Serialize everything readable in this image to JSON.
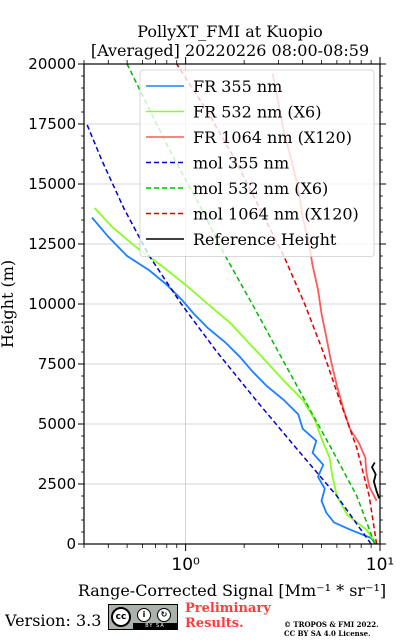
{
  "figure": {
    "title_line1": "PollyXT_FMI at Kuopio",
    "title_line2": "[Averaged] 20220226 08:00-08:59",
    "version": "Version: 3.3",
    "license_badge": {
      "logo": "cc",
      "icons": [
        "by-icon",
        "sa-icon"
      ],
      "strip_text": "BY  SA"
    },
    "preliminary": [
      "Preliminary",
      "Results."
    ],
    "copyright": [
      "© TROPOS & FMI 2022.",
      "CC BY SA 4.0 License."
    ]
  },
  "chart_data": {
    "type": "line",
    "xlabel": "Range-Corrected Signal [Mm⁻¹ * sr⁻¹]",
    "ylabel": "Height (m)",
    "xscale": "log",
    "xlim": [
      0.3,
      10
    ],
    "ylim": [
      0,
      20000
    ],
    "x_ticks": [
      {
        "value": 1,
        "label": "10⁰"
      },
      {
        "value": 10,
        "label": "10¹"
      }
    ],
    "y_ticks": [
      0,
      2500,
      5000,
      7500,
      10000,
      12500,
      15000,
      17500,
      20000
    ],
    "y_tick_labels": [
      "0",
      "2500",
      "5000",
      "7500",
      "10000",
      "12500",
      "15000",
      "17500",
      "20000"
    ],
    "grid": true,
    "legend_position": "top-right",
    "series": [
      {
        "name": "FR 355 nm",
        "color": "#1a80ff",
        "style": "solid",
        "points": [
          [
            9.5,
            0
          ],
          [
            9.0,
            250
          ],
          [
            7.0,
            600
          ],
          [
            5.8,
            900
          ],
          [
            5.3,
            1300
          ],
          [
            5.0,
            1800
          ],
          [
            5.2,
            2300
          ],
          [
            4.8,
            2800
          ],
          [
            5.1,
            3300
          ],
          [
            4.5,
            3800
          ],
          [
            4.7,
            4300
          ],
          [
            4.0,
            4800
          ],
          [
            3.8,
            5400
          ],
          [
            3.2,
            6000
          ],
          [
            2.6,
            6600
          ],
          [
            2.2,
            7200
          ],
          [
            1.9,
            7800
          ],
          [
            1.6,
            8400
          ],
          [
            1.3,
            9000
          ],
          [
            1.1,
            9600
          ],
          [
            0.95,
            10200
          ],
          [
            0.8,
            10800
          ],
          [
            0.65,
            11400
          ],
          [
            0.5,
            12000
          ],
          [
            0.4,
            12800
          ],
          [
            0.33,
            13600
          ]
        ]
      },
      {
        "name": "FR 532 nm (X6)",
        "color": "#88ff22",
        "style": "solid",
        "points": [
          [
            9.6,
            0
          ],
          [
            8.5,
            600
          ],
          [
            6.8,
            1200
          ],
          [
            6.0,
            2000
          ],
          [
            5.7,
            2800
          ],
          [
            5.5,
            3600
          ],
          [
            5.0,
            4400
          ],
          [
            4.6,
            5200
          ],
          [
            4.0,
            6000
          ],
          [
            3.2,
            6800
          ],
          [
            2.6,
            7600
          ],
          [
            2.1,
            8400
          ],
          [
            1.7,
            9200
          ],
          [
            1.3,
            10000
          ],
          [
            1.0,
            10800
          ],
          [
            0.75,
            11600
          ],
          [
            0.55,
            12400
          ],
          [
            0.42,
            13200
          ],
          [
            0.34,
            14000
          ]
        ]
      },
      {
        "name": "FR 1064 nm (X120)",
        "color": "#ff5a5a",
        "style": "solid",
        "points": [
          [
            9.6,
            1800
          ],
          [
            8.8,
            2400
          ],
          [
            8.5,
            3000
          ],
          [
            8.4,
            3600
          ],
          [
            7.8,
            4200
          ],
          [
            7.0,
            4800
          ],
          [
            6.5,
            5600
          ],
          [
            6.0,
            6600
          ],
          [
            5.6,
            7600
          ],
          [
            5.3,
            8600
          ],
          [
            5.0,
            9600
          ],
          [
            4.8,
            10600
          ],
          [
            4.5,
            11600
          ],
          [
            4.3,
            12600
          ],
          [
            4.0,
            13600
          ],
          [
            3.8,
            14800
          ],
          [
            3.5,
            16000
          ],
          [
            3.2,
            17200
          ],
          [
            3.0,
            18400
          ],
          [
            2.8,
            19600
          ]
        ]
      },
      {
        "name": "mol 355 nm",
        "color": "#0000cc",
        "style": "dashed",
        "points": [
          [
            9.0,
            0
          ],
          [
            6.0,
            2000
          ],
          [
            3.7,
            4000
          ],
          [
            2.3,
            6000
          ],
          [
            1.45,
            8000
          ],
          [
            0.95,
            10000
          ],
          [
            0.65,
            12000
          ],
          [
            0.48,
            14000
          ],
          [
            0.37,
            16000
          ],
          [
            0.31,
            17500
          ]
        ]
      },
      {
        "name": "mol 532 nm (X6)",
        "color": "#00bb00",
        "style": "dashed",
        "points": [
          [
            9.4,
            0
          ],
          [
            7.6,
            2000
          ],
          [
            5.6,
            4000
          ],
          [
            4.1,
            6000
          ],
          [
            3.0,
            8000
          ],
          [
            2.2,
            10000
          ],
          [
            1.6,
            12000
          ],
          [
            1.2,
            14000
          ],
          [
            0.88,
            16000
          ],
          [
            0.66,
            18000
          ],
          [
            0.5,
            20000
          ]
        ]
      },
      {
        "name": "mol 1064 nm (X120)",
        "color": "#dd0000",
        "style": "dashed",
        "points": [
          [
            9.6,
            0
          ],
          [
            8.8,
            2000
          ],
          [
            7.6,
            4000
          ],
          [
            6.2,
            6000
          ],
          [
            5.1,
            8000
          ],
          [
            4.1,
            10000
          ],
          [
            3.2,
            12000
          ],
          [
            2.4,
            14000
          ],
          [
            1.8,
            16000
          ],
          [
            1.3,
            18000
          ],
          [
            0.9,
            20000
          ]
        ]
      },
      {
        "name": "Reference Height",
        "color": "#000000",
        "style": "solid",
        "points": [
          [
            9.9,
            1900
          ],
          [
            9.6,
            2200
          ],
          [
            9.3,
            2600
          ],
          [
            9.5,
            2900
          ],
          [
            9.1,
            3200
          ],
          [
            9.4,
            3400
          ]
        ]
      }
    ]
  }
}
